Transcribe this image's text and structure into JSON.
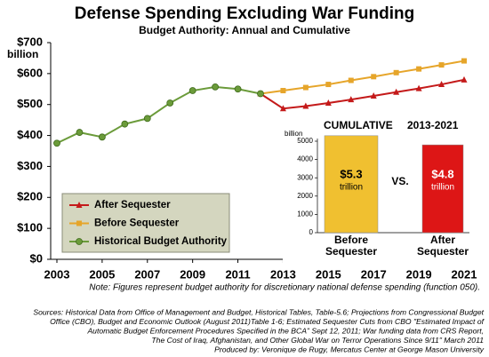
{
  "chart_data": [
    {
      "type": "line",
      "title": "Defense Spending Excluding War Funding",
      "subtitle": "Budget Authority: Annual and Cumulative",
      "y_unit": "billion",
      "x": [
        2003,
        2004,
        2005,
        2006,
        2007,
        2008,
        2009,
        2010,
        2011,
        2012,
        2013,
        2014,
        2015,
        2016,
        2017,
        2018,
        2019,
        2020,
        2021
      ],
      "xlim": [
        2003,
        2021
      ],
      "xticks": [
        2003,
        2005,
        2007,
        2009,
        2011,
        2013,
        2015,
        2017,
        2019,
        2021
      ],
      "ylim": [
        0,
        700
      ],
      "yticks": [
        {
          "value": 0,
          "label": "$0"
        },
        {
          "value": 100,
          "label": "$100"
        },
        {
          "value": 200,
          "label": "$200"
        },
        {
          "value": 300,
          "label": "$300"
        },
        {
          "value": 400,
          "label": "$400"
        },
        {
          "value": 500,
          "label": "$500"
        },
        {
          "value": 600,
          "label": "$600"
        },
        {
          "value": 700,
          "label": "$700"
        }
      ],
      "legend": "lower-left",
      "series": [
        {
          "name": "After Sequester",
          "color": "#c41a1a",
          "marker": "triangle",
          "values": [
            null,
            null,
            null,
            null,
            null,
            null,
            null,
            null,
            null,
            535,
            487,
            495,
            505,
            516,
            528,
            540,
            552,
            565,
            580
          ]
        },
        {
          "name": "Before Sequester",
          "color": "#e6a52a",
          "marker": "square",
          "values": [
            null,
            null,
            null,
            null,
            null,
            null,
            null,
            null,
            null,
            535,
            545,
            555,
            565,
            578,
            590,
            603,
            615,
            628,
            641
          ]
        },
        {
          "name": "Historical Budget Authority",
          "color": "#6b9b3a",
          "marker": "circle",
          "values": [
            375,
            410,
            395,
            437,
            455,
            505,
            545,
            557,
            550,
            535,
            null,
            null,
            null,
            null,
            null,
            null,
            null,
            null,
            null
          ]
        }
      ]
    },
    {
      "type": "bar",
      "title": "CUMULATIVE",
      "period": "2013-2021",
      "y_label": "billion",
      "categories": [
        "Before Sequester",
        "After Sequester"
      ],
      "values": [
        5300,
        4800
      ],
      "value_labels": [
        "$5.3",
        "$4.8"
      ],
      "value_unit": "trillion",
      "colors": [
        "#f0c030",
        "#dd1616"
      ],
      "annotation": "VS.",
      "ylim": [
        0,
        5000
      ],
      "yticks": [
        0,
        1000,
        2000,
        3000,
        4000,
        5000
      ]
    }
  ],
  "footer": {
    "note": "Note: Figures represent budget authority for discretionary national defense spending (function 050).",
    "sources": [
      "Sources: Historical Data from Office of Management and Budget, Historical Tables, Table-5.6; Projections from Congressional Budget",
      "Office (CBO), Budget and Economic Outlook (August 2011)Table 1-6; Estimated Sequester Cuts from CBO \"Estimated Impact of",
      "Automatic Budget Enforcement Procedures Specified in the BCA\" Sept 12, 2011; War funding data from CRS Report,",
      "The Cost of Iraq, Afghanistan, and Other Global War on Terror Operations Since 9/11\" March 2011",
      "Produced by: Veronique de Rugy, Mercatus Center at George Mason University"
    ]
  }
}
